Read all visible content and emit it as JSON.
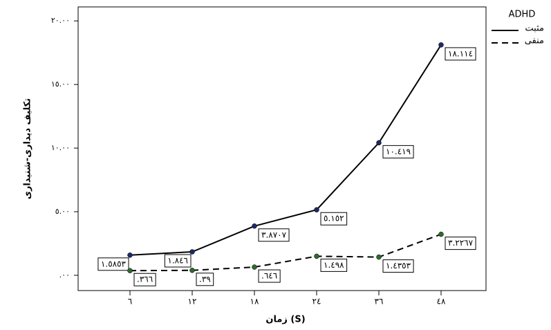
{
  "chart_data": {
    "type": "line",
    "y_label": "تکلیف دیداری-شنیداری",
    "x_label": "زمان (S)",
    "legend_title": "ADHD",
    "categories": [
      "٦",
      "۱۲",
      "۱۸",
      "۲٤",
      "۳٦",
      "٤۸"
    ],
    "series": [
      {
        "name": "مثبت",
        "color": "#000000",
        "marker_color": "#1c2a66",
        "line_style": "solid",
        "values": [
          1.5853,
          1.846,
          3.8707,
          5.152,
          10.419,
          18.114
        ],
        "value_labels": [
          "۱.٥۸٥۳",
          "۱.۸٤٦",
          "۳.۸۷۰۷",
          "٥.۱٥۲",
          "۱۰.٤۱۹",
          "۱۸.۱۱٤"
        ]
      },
      {
        "name": "منفی",
        "color": "#000000",
        "marker_color": "#2d6a2d",
        "line_style": "dashed",
        "values": [
          0.366,
          0.39,
          0.646,
          1.498,
          1.4353,
          3.2267
        ],
        "value_labels": [
          ".۳٦٦",
          ".۳۹",
          ".٦٤٦",
          "۱.٤۹۸",
          "۱.٤۳٥۳",
          "۳.۲۲٦۷"
        ]
      }
    ],
    "ylim": [
      -1.2,
      21.1
    ],
    "yticks": [
      {
        "value": 0,
        "label": ".۰۰"
      },
      {
        "value": 5,
        "label": "٥.۰۰"
      },
      {
        "value": 10,
        "label": "۱۰.۰۰"
      },
      {
        "value": 15,
        "label": "۱٥.۰۰"
      },
      {
        "value": 20,
        "label": "۲۰.۰۰"
      }
    ],
    "grid": false
  }
}
